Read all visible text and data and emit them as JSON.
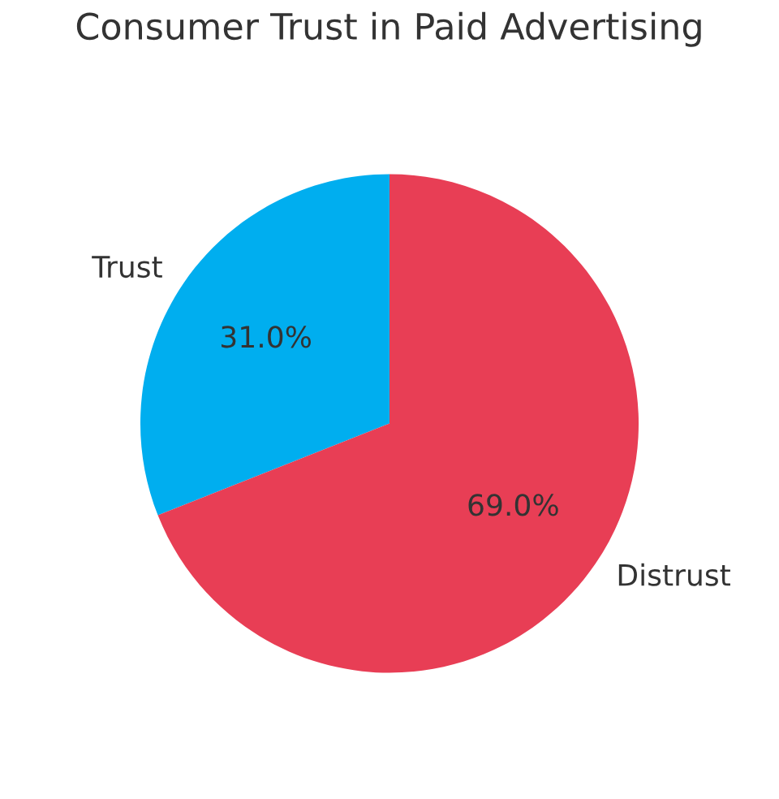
{
  "chart_data": {
    "type": "pie",
    "title": "Consumer Trust in Paid Advertising",
    "categories": [
      "Trust",
      "Distrust"
    ],
    "values": [
      31,
      69
    ],
    "colors": [
      "#00aeef",
      "#e83e55"
    ],
    "value_labels": [
      "31.0%",
      "69.0%"
    ]
  }
}
